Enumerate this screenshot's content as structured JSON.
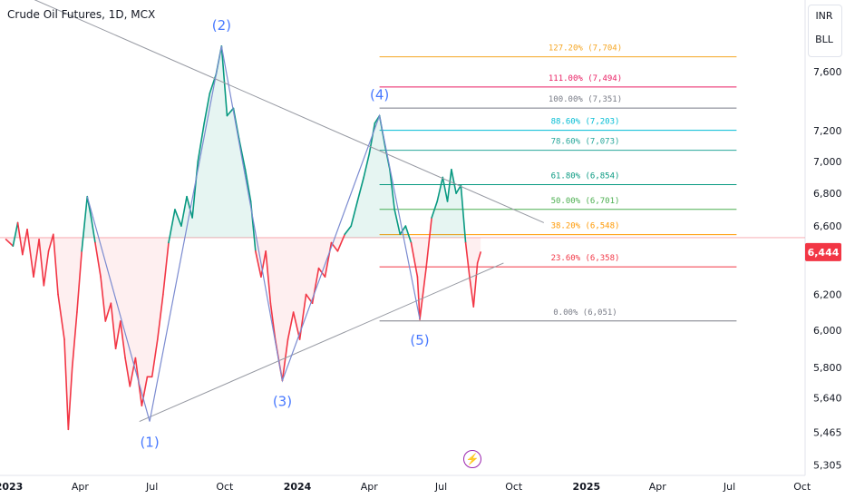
{
  "header": {
    "title": "Crude Oil Futures, 1D, MCX"
  },
  "currency": {
    "primary": "INR",
    "secondary": "BLL"
  },
  "colors": {
    "up": "#089981",
    "down": "#f23645",
    "pattern": "#7b8bd0",
    "wave_label": "#2962ff"
  },
  "icons": {
    "flash": "lightning-icon"
  },
  "chart_data": {
    "type": "line",
    "price_axis": {
      "ticks": [
        {
          "v": 7600,
          "l": "7,600"
        },
        {
          "v": 7200,
          "l": "7,200"
        },
        {
          "v": 7000,
          "l": "7,000"
        },
        {
          "v": 6800,
          "l": "6,800"
        },
        {
          "v": 6600,
          "l": "6,600"
        },
        {
          "v": 6200,
          "l": "6,200"
        },
        {
          "v": 6000,
          "l": "6,000"
        },
        {
          "v": 5800,
          "l": "5,800"
        },
        {
          "v": 5640,
          "l": "5,640"
        },
        {
          "v": 5465,
          "l": "5,465"
        },
        {
          "v": 5305,
          "l": "5,305"
        }
      ],
      "last_price": 6444,
      "last_price_label": "6,444",
      "scale": "log"
    },
    "time_axis": {
      "ticks": [
        {
          "d": "2023-01-01",
          "l": "2023"
        },
        {
          "d": "2023-04-01",
          "l": "Apr"
        },
        {
          "d": "2023-07-01",
          "l": "Jul"
        },
        {
          "d": "2023-10-01",
          "l": "Oct"
        },
        {
          "d": "2024-01-01",
          "l": "2024"
        },
        {
          "d": "2024-04-01",
          "l": "Apr"
        },
        {
          "d": "2024-07-01",
          "l": "Jul"
        },
        {
          "d": "2024-10-01",
          "l": "Oct"
        },
        {
          "d": "2025-01-01",
          "l": "2025"
        },
        {
          "d": "2025-04-01",
          "l": "Apr"
        },
        {
          "d": "2025-07-01",
          "l": "Jul"
        },
        {
          "d": "2025-10-01",
          "l": "Oct"
        }
      ]
    },
    "baseline": 6530,
    "series": [
      {
        "points": [
          {
            "d": "2022-12-28",
            "v": 6520
          },
          {
            "d": "2023-01-06",
            "v": 6480
          },
          {
            "d": "2023-01-12",
            "v": 6620
          },
          {
            "d": "2023-01-18",
            "v": 6430
          },
          {
            "d": "2023-01-24",
            "v": 6580
          },
          {
            "d": "2023-02-01",
            "v": 6300
          },
          {
            "d": "2023-02-08",
            "v": 6520
          },
          {
            "d": "2023-02-14",
            "v": 6250
          },
          {
            "d": "2023-02-20",
            "v": 6450
          },
          {
            "d": "2023-02-26",
            "v": 6550
          },
          {
            "d": "2023-03-04",
            "v": 6200
          },
          {
            "d": "2023-03-12",
            "v": 5950
          },
          {
            "d": "2023-03-17",
            "v": 5480
          },
          {
            "d": "2023-03-22",
            "v": 5800
          },
          {
            "d": "2023-03-28",
            "v": 6100
          },
          {
            "d": "2023-04-03",
            "v": 6450
          },
          {
            "d": "2023-04-10",
            "v": 6780
          },
          {
            "d": "2023-04-15",
            "v": 6650
          },
          {
            "d": "2023-04-20",
            "v": 6500
          },
          {
            "d": "2023-04-27",
            "v": 6300
          },
          {
            "d": "2023-05-03",
            "v": 6050
          },
          {
            "d": "2023-05-10",
            "v": 6150
          },
          {
            "d": "2023-05-16",
            "v": 5900
          },
          {
            "d": "2023-05-22",
            "v": 6050
          },
          {
            "d": "2023-05-28",
            "v": 5850
          },
          {
            "d": "2023-06-03",
            "v": 5700
          },
          {
            "d": "2023-06-10",
            "v": 5850
          },
          {
            "d": "2023-06-18",
            "v": 5600
          },
          {
            "d": "2023-06-25",
            "v": 5750
          },
          {
            "d": "2023-07-01",
            "v": 5750
          },
          {
            "d": "2023-07-08",
            "v": 5950
          },
          {
            "d": "2023-07-15",
            "v": 6200
          },
          {
            "d": "2023-07-22",
            "v": 6500
          },
          {
            "d": "2023-07-30",
            "v": 6700
          },
          {
            "d": "2023-08-07",
            "v": 6600
          },
          {
            "d": "2023-08-14",
            "v": 6780
          },
          {
            "d": "2023-08-21",
            "v": 6650
          },
          {
            "d": "2023-08-28",
            "v": 7000
          },
          {
            "d": "2023-09-05",
            "v": 7250
          },
          {
            "d": "2023-09-12",
            "v": 7450
          },
          {
            "d": "2023-09-20",
            "v": 7580
          },
          {
            "d": "2023-09-27",
            "v": 7780
          },
          {
            "d": "2023-10-04",
            "v": 7300
          },
          {
            "d": "2023-10-12",
            "v": 7350
          },
          {
            "d": "2023-10-19",
            "v": 7150
          },
          {
            "d": "2023-10-27",
            "v": 6950
          },
          {
            "d": "2023-11-03",
            "v": 6750
          },
          {
            "d": "2023-11-09",
            "v": 6450
          },
          {
            "d": "2023-11-16",
            "v": 6300
          },
          {
            "d": "2023-11-22",
            "v": 6450
          },
          {
            "d": "2023-11-28",
            "v": 6150
          },
          {
            "d": "2023-12-04",
            "v": 5950
          },
          {
            "d": "2023-12-10",
            "v": 5800
          },
          {
            "d": "2023-12-13",
            "v": 5730
          },
          {
            "d": "2023-12-20",
            "v": 5950
          },
          {
            "d": "2023-12-27",
            "v": 6100
          },
          {
            "d": "2024-01-04",
            "v": 5950
          },
          {
            "d": "2024-01-12",
            "v": 6200
          },
          {
            "d": "2024-01-20",
            "v": 6150
          },
          {
            "d": "2024-01-28",
            "v": 6350
          },
          {
            "d": "2024-02-05",
            "v": 6300
          },
          {
            "d": "2024-02-13",
            "v": 6500
          },
          {
            "d": "2024-02-21",
            "v": 6450
          },
          {
            "d": "2024-03-01",
            "v": 6550
          },
          {
            "d": "2024-03-09",
            "v": 6600
          },
          {
            "d": "2024-03-17",
            "v": 6750
          },
          {
            "d": "2024-03-25",
            "v": 6900
          },
          {
            "d": "2024-04-01",
            "v": 7050
          },
          {
            "d": "2024-04-08",
            "v": 7250
          },
          {
            "d": "2024-04-14",
            "v": 7300
          },
          {
            "d": "2024-04-21",
            "v": 7100
          },
          {
            "d": "2024-04-27",
            "v": 6950
          },
          {
            "d": "2024-05-03",
            "v": 6700
          },
          {
            "d": "2024-05-10",
            "v": 6550
          },
          {
            "d": "2024-05-17",
            "v": 6600
          },
          {
            "d": "2024-05-24",
            "v": 6500
          },
          {
            "d": "2024-06-01",
            "v": 6300
          },
          {
            "d": "2024-06-04",
            "v": 6060
          },
          {
            "d": "2024-06-12",
            "v": 6350
          },
          {
            "d": "2024-06-19",
            "v": 6650
          },
          {
            "d": "2024-06-26",
            "v": 6750
          },
          {
            "d": "2024-07-03",
            "v": 6900
          },
          {
            "d": "2024-07-09",
            "v": 6750
          },
          {
            "d": "2024-07-14",
            "v": 6950
          },
          {
            "d": "2024-07-20",
            "v": 6800
          },
          {
            "d": "2024-07-26",
            "v": 6850
          },
          {
            "d": "2024-08-01",
            "v": 6500
          },
          {
            "d": "2024-08-06",
            "v": 6300
          },
          {
            "d": "2024-08-11",
            "v": 6130
          },
          {
            "d": "2024-08-16",
            "v": 6380
          },
          {
            "d": "2024-08-20",
            "v": 6444
          }
        ]
      }
    ],
    "elliott_wave": {
      "points": [
        {
          "label": "(1)",
          "d": "2023-06-28",
          "v": 5520,
          "pos": "below"
        },
        {
          "label": "(2)",
          "d": "2023-09-27",
          "v": 7780,
          "pos": "above"
        },
        {
          "label": "(3)",
          "d": "2023-12-13",
          "v": 5730,
          "pos": "below"
        },
        {
          "label": "(4)",
          "d": "2024-04-14",
          "v": 7300,
          "pos": "above"
        },
        {
          "label": "(5)",
          "d": "2024-06-04",
          "v": 6060,
          "pos": "below"
        }
      ],
      "start": {
        "d": "2023-04-10",
        "v": 6780
      }
    },
    "trendlines": [
      {
        "from": {
          "d": "2023-01-01",
          "v": 8200
        },
        "to": {
          "d": "2024-11-08",
          "v": 6620
        }
      },
      {
        "from": {
          "d": "2023-06-15",
          "v": 5520
        },
        "to": {
          "d": "2024-09-18",
          "v": 6380
        }
      }
    ],
    "fib": {
      "start": "2024-04-14",
      "end": "2025-07-10",
      "levels": [
        {
          "label": "127.20% (7,704)",
          "v": 7704,
          "color": "#f5a623"
        },
        {
          "label": "111.00% (7,494)",
          "v": 7494,
          "color": "#e91e63"
        },
        {
          "label": "100.00% (7,351)",
          "v": 7351,
          "color": "#787b86"
        },
        {
          "label": "88.60% (7,203)",
          "v": 7203,
          "color": "#00bcd4"
        },
        {
          "label": "78.60% (7,073)",
          "v": 7073,
          "color": "#26a69a"
        },
        {
          "label": "61.80% (6,854)",
          "v": 6854,
          "color": "#089981"
        },
        {
          "label": "50.00% (6,701)",
          "v": 6701,
          "color": "#4caf50"
        },
        {
          "label": "38.20% (6,548)",
          "v": 6548,
          "color": "#ff9800"
        },
        {
          "label": "23.60% (6,358)",
          "v": 6358,
          "color": "#f23645"
        },
        {
          "label": "0.00% (6,051)",
          "v": 6051,
          "color": "#787b86"
        }
      ]
    }
  }
}
